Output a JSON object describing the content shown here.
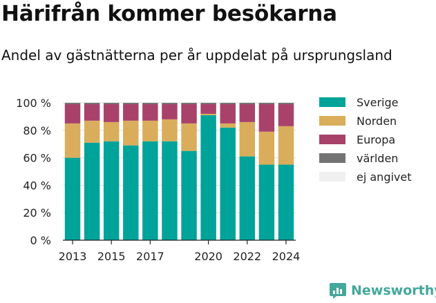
{
  "title": "Härifrån kommer besökarna",
  "subtitle": "Andel av gästnätterna per år uppdelat på ursprungsland",
  "brand": {
    "name": "Newsworthy",
    "color": "#44a79b",
    "icon": "newsworthy-logo-icon"
  },
  "chart_data": {
    "type": "bar",
    "stacked": true,
    "title": "",
    "xlabel": "",
    "ylabel": "",
    "ylim": [
      0,
      100
    ],
    "y_ticks": [
      "0 %",
      "20 %",
      "40 %",
      "60 %",
      "80 %",
      "100 %"
    ],
    "y_tick_values": [
      0,
      20,
      40,
      60,
      80,
      100
    ],
    "x_ticks": [
      "2013",
      "2015",
      "2017",
      "2020",
      "2022",
      "2024"
    ],
    "categories": [
      "2013",
      "2014",
      "2015",
      "2016",
      "2017",
      "2018",
      "2019",
      "2020",
      "2021",
      "2022",
      "2023",
      "2024"
    ],
    "grid": true,
    "legend_position": "right",
    "series": [
      {
        "name": "Sverige",
        "color": "#00a39a",
        "values": [
          60,
          71,
          72,
          69,
          72,
          72,
          65,
          91,
          82,
          61,
          55,
          55
        ]
      },
      {
        "name": "Norden",
        "color": "#d9ad5b",
        "values": [
          25,
          16,
          14,
          18,
          15,
          16,
          20,
          1,
          3,
          25,
          24,
          28
        ]
      },
      {
        "name": "Europa",
        "color": "#a8426b",
        "values": [
          14,
          12,
          13,
          12,
          12,
          11,
          14,
          7,
          14,
          13,
          20,
          16
        ]
      },
      {
        "name": "världen",
        "color": "#737373",
        "values": [
          1,
          1,
          1,
          1,
          1,
          1,
          1,
          1,
          1,
          1,
          1,
          1
        ]
      },
      {
        "name": "ej angivet",
        "color": "#f0f0f0",
        "values": [
          0,
          0,
          0,
          0,
          0,
          0,
          0,
          0,
          0,
          0,
          0,
          0
        ]
      }
    ]
  }
}
